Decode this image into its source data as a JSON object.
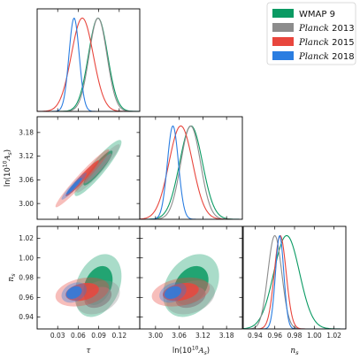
{
  "colors": {
    "wmap9": "#0a9a63",
    "planck2013": "#8c8c8c",
    "planck2015": "#e8463d",
    "planck2018": "#2a7de1"
  },
  "legend": [
    {
      "key": "wmap9",
      "label_main": "WMAP 9",
      "label_suffix": ""
    },
    {
      "key": "planck2013",
      "label_main": "Planck",
      "label_suffix": " 2013"
    },
    {
      "key": "planck2015",
      "label_main": "Planck",
      "label_suffix": " 2015"
    },
    {
      "key": "planck2018",
      "label_main": "Planck",
      "label_suffix": " 2018"
    }
  ],
  "axes": {
    "tau": {
      "label": "τ",
      "ticks": [
        "0.03",
        "0.06",
        "0.09",
        "0.12"
      ],
      "tick_values": [
        0.03,
        0.06,
        0.09,
        0.12
      ],
      "range": [
        0.0,
        0.15
      ]
    },
    "lnAs": {
      "label": "ln(10¹⁰A_s)",
      "ticks": [
        "3.00",
        "3.06",
        "3.12",
        "3.18"
      ],
      "tick_values": [
        3.0,
        3.06,
        3.12,
        3.18
      ],
      "range": [
        2.96,
        3.22
      ]
    },
    "ns": {
      "label": "n_s",
      "ticks": [
        "0.94",
        "0.96",
        "0.98",
        "1.00",
        "1.02"
      ],
      "tick_values": [
        0.94,
        0.96,
        0.98,
        1.0,
        1.02
      ],
      "range": [
        0.928,
        1.032
      ]
    }
  },
  "chart_data": {
    "type": "triangle (corner) plot of marginalized posteriors",
    "parameters": [
      "tau",
      "lnAs",
      "ns"
    ],
    "series": [
      {
        "key": "wmap9",
        "name": "WMAP 9",
        "mean": {
          "tau": 0.089,
          "lnAs": 3.09,
          "ns": 0.972
        },
        "sigma": {
          "tau": 0.014,
          "lnAs": 0.029,
          "ns": 0.013
        },
        "corr": {
          "tau_lnAs": 0.92,
          "tau_ns": 0.3,
          "lnAs_ns": 0.3
        }
      },
      {
        "key": "planck2013",
        "name": "Planck 2013",
        "mean": {
          "tau": 0.089,
          "lnAs": 3.089,
          "ns": 0.96
        },
        "sigma": {
          "tau": 0.013,
          "lnAs": 0.025,
          "ns": 0.007
        },
        "corr": {
          "tau_lnAs": 0.95,
          "tau_ns": 0.3,
          "lnAs_ns": 0.3
        }
      },
      {
        "key": "planck2015",
        "name": "Planck 2015",
        "mean": {
          "tau": 0.066,
          "lnAs": 3.064,
          "ns": 0.9655
        },
        "sigma": {
          "tau": 0.016,
          "lnAs": 0.03,
          "ns": 0.006
        },
        "corr": {
          "tau_lnAs": 0.97,
          "tau_ns": 0.3,
          "lnAs_ns": 0.3
        }
      },
      {
        "key": "planck2018",
        "name": "Planck 2018",
        "mean": {
          "tau": 0.054,
          "lnAs": 3.044,
          "ns": 0.9649
        },
        "sigma": {
          "tau": 0.0075,
          "lnAs": 0.014,
          "ns": 0.0042
        },
        "corr": {
          "tau_lnAs": 0.95,
          "tau_ns": 0.3,
          "lnAs_ns": 0.3
        }
      }
    ],
    "contour_levels": [
      "68%",
      "95%"
    ],
    "legend_position": "top-right"
  }
}
